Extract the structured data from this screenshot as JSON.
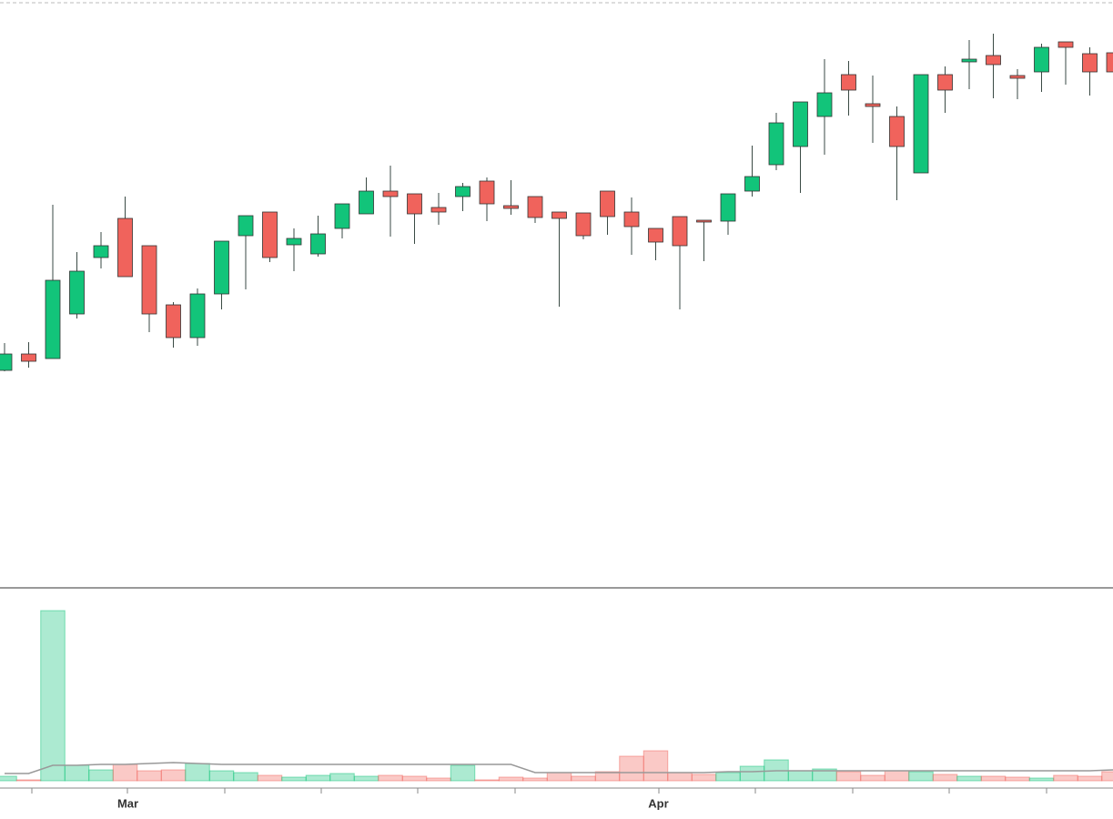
{
  "chart_data": {
    "type": "candlestick",
    "categories": [
      null,
      null,
      null,
      null,
      null,
      "Mar",
      null,
      null,
      null,
      null,
      null,
      null,
      null,
      null,
      null,
      null,
      null,
      null,
      null,
      null,
      null,
      null,
      null,
      null,
      null,
      null,
      null,
      "Apr",
      null,
      null,
      null,
      null,
      null,
      null,
      null,
      null,
      null,
      null,
      null,
      null,
      null,
      null,
      null,
      null,
      null,
      null,
      null
    ],
    "open": [
      238,
      256,
      251,
      300,
      362,
      405,
      375,
      310,
      274,
      322,
      386,
      412,
      376,
      366,
      394,
      410,
      435,
      432,
      417,
      429,
      446,
      419,
      429,
      412,
      411,
      435,
      412,
      394,
      407,
      403,
      402,
      435,
      464,
      484,
      517,
      563,
      531,
      517,
      455,
      563,
      577,
      584,
      562,
      566,
      599,
      586,
      587
    ],
    "high": [
      268,
      269,
      420,
      368,
      390,
      429,
      375,
      313,
      328,
      380,
      408,
      412,
      394,
      408,
      421,
      450,
      463,
      432,
      433,
      444,
      450,
      447,
      429,
      412,
      411,
      435,
      428,
      394,
      407,
      403,
      432,
      485,
      521,
      533,
      580,
      578,
      562,
      528,
      563,
      572,
      601,
      608,
      569,
      597,
      599,
      593,
      587
    ],
    "low": [
      237,
      241,
      251,
      295,
      350,
      341,
      280,
      263,
      265,
      305,
      327,
      357,
      347,
      363,
      383,
      410,
      385,
      377,
      398,
      413,
      402,
      409,
      400,
      308,
      382,
      387,
      365,
      359,
      305,
      358,
      387,
      429,
      458,
      433,
      475,
      518,
      488,
      425,
      455,
      521,
      547,
      537,
      536,
      544,
      552,
      540,
      566
    ],
    "close": [
      256,
      248,
      337,
      347,
      375,
      341,
      300,
      274,
      322,
      380,
      408,
      362,
      383,
      388,
      421,
      435,
      429,
      410,
      412,
      440,
      421,
      416,
      406,
      405,
      386,
      407,
      396,
      379,
      375,
      401,
      432,
      451,
      510,
      533,
      543,
      546,
      528,
      484,
      563,
      546,
      580,
      574,
      559,
      593,
      593,
      566,
      566
    ],
    "ylim": [
      0,
      645
    ],
    "volume": [
      5,
      1,
      187,
      17,
      12,
      18,
      11,
      12,
      19,
      11,
      9,
      6,
      4,
      6,
      8,
      5,
      6,
      5,
      3,
      17,
      1,
      4,
      3,
      9,
      5,
      10,
      27,
      33,
      9,
      7,
      9,
      16,
      23,
      11,
      13,
      10,
      6,
      11,
      10,
      7,
      5,
      5,
      4,
      3,
      6,
      5,
      10
    ],
    "volume_average": [
      8,
      8,
      17,
      17,
      18,
      18,
      19,
      20,
      19,
      18,
      18,
      18,
      18,
      18,
      18,
      18,
      18,
      18,
      18,
      18,
      18,
      18,
      9,
      9,
      9,
      9,
      9,
      9,
      9,
      9,
      10,
      10,
      11,
      11,
      11,
      11,
      11,
      11,
      11,
      11,
      11,
      11,
      11,
      11,
      11,
      11,
      12
    ],
    "volume_ylim": [
      0,
      210
    ],
    "up_color": "#12c47a",
    "down_color": "#f0635c",
    "average_color": "#999999"
  }
}
